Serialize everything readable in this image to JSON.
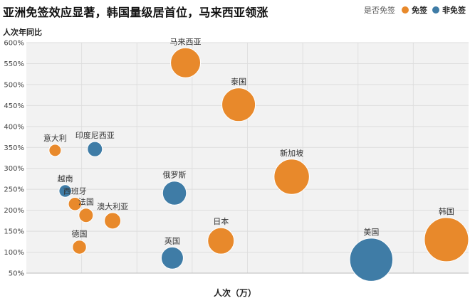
{
  "chart_data": {
    "type": "scatter",
    "title": "亚洲免签效应显著，韩国量级居首位，马来西亚领涨",
    "ylabel": "人次年同比",
    "xlabel": "人次（万）",
    "legend": {
      "title": "是否免签",
      "placement": "top-right",
      "items": [
        {
          "label": "免签",
          "color": "#E8892B"
        },
        {
          "label": "非免签",
          "color": "#3F7CA6"
        }
      ]
    },
    "y_ticks": [
      "600%",
      "550%",
      "500%",
      "450%",
      "400%",
      "350%",
      "300%",
      "250%",
      "200%",
      "150%",
      "100%",
      "50%"
    ],
    "ylim": [
      50,
      600
    ],
    "grid": {
      "horizontal": true,
      "vertical": true
    },
    "points": [
      {
        "label": "马来西亚",
        "category": "免签",
        "x": 0.36,
        "y": 552,
        "size": 6
      },
      {
        "label": "泰国",
        "category": "免签",
        "x": 0.48,
        "y": 452,
        "size": 7
      },
      {
        "label": "新加坡",
        "category": "免签",
        "x": 0.6,
        "y": 280,
        "size": 7.5
      },
      {
        "label": "韩国",
        "category": "免签",
        "x": 0.95,
        "y": 130,
        "size": 10
      },
      {
        "label": "日本",
        "category": "免签",
        "x": 0.44,
        "y": 127,
        "size": 5
      },
      {
        "label": "意大利",
        "category": "免签",
        "x": 0.065,
        "y": 343,
        "size": 1
      },
      {
        "label": "西班牙",
        "category": "免签",
        "x": 0.11,
        "y": 215,
        "size": 1.3
      },
      {
        "label": "法国",
        "category": "免签",
        "x": 0.135,
        "y": 188,
        "size": 1.6
      },
      {
        "label": "澳大利亚",
        "category": "免签",
        "x": 0.195,
        "y": 175,
        "size": 2.2
      },
      {
        "label": "德国",
        "category": "免签",
        "x": 0.12,
        "y": 112,
        "size": 1.5
      },
      {
        "label": "印度尼西亚",
        "category": "非免签",
        "x": 0.155,
        "y": 346,
        "size": 1.8
      },
      {
        "label": "越南",
        "category": "非免签",
        "x": 0.088,
        "y": 246,
        "size": 1.1
      },
      {
        "label": "俄罗斯",
        "category": "非免签",
        "x": 0.335,
        "y": 241,
        "size": 4.3
      },
      {
        "label": "英国",
        "category": "非免签",
        "x": 0.33,
        "y": 86,
        "size": 3.8
      },
      {
        "label": "美国",
        "category": "非免签",
        "x": 0.78,
        "y": 82,
        "size": 9.7
      }
    ]
  }
}
